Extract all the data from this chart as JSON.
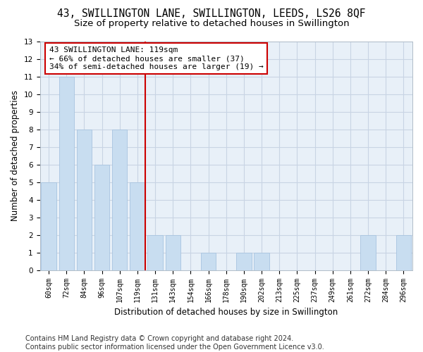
{
  "title": "43, SWILLINGTON LANE, SWILLINGTON, LEEDS, LS26 8QF",
  "subtitle": "Size of property relative to detached houses in Swillington",
  "xlabel": "Distribution of detached houses by size in Swillington",
  "ylabel": "Number of detached properties",
  "categories": [
    "60sqm",
    "72sqm",
    "84sqm",
    "96sqm",
    "107sqm",
    "119sqm",
    "131sqm",
    "143sqm",
    "154sqm",
    "166sqm",
    "178sqm",
    "190sqm",
    "202sqm",
    "213sqm",
    "225sqm",
    "237sqm",
    "249sqm",
    "261sqm",
    "272sqm",
    "284sqm",
    "296sqm"
  ],
  "values": [
    5,
    11,
    8,
    6,
    8,
    5,
    2,
    2,
    0,
    1,
    0,
    1,
    1,
    0,
    0,
    0,
    0,
    0,
    2,
    0,
    2
  ],
  "bar_color": "#c8ddf0",
  "bar_edgecolor": "#a8c4e0",
  "vline_index": 5,
  "vline_color": "#cc0000",
  "annotation_line1": "43 SWILLINGTON LANE: 119sqm",
  "annotation_line2": "← 66% of detached houses are smaller (37)",
  "annotation_line3": "34% of semi-detached houses are larger (19) →",
  "annotation_box_facecolor": "#ffffff",
  "annotation_box_edgecolor": "#cc0000",
  "plot_bg_color": "#e8f0f8",
  "ylim": [
    0,
    13
  ],
  "yticks": [
    0,
    1,
    2,
    3,
    4,
    5,
    6,
    7,
    8,
    9,
    10,
    11,
    12,
    13
  ],
  "grid_color": "#c8d4e4",
  "title_fontsize": 10.5,
  "subtitle_fontsize": 9.5,
  "tick_fontsize": 7,
  "ylabel_fontsize": 8.5,
  "xlabel_fontsize": 8.5,
  "annotation_fontsize": 8,
  "footer_fontsize": 7,
  "footer": "Contains HM Land Registry data © Crown copyright and database right 2024.\nContains public sector information licensed under the Open Government Licence v3.0."
}
